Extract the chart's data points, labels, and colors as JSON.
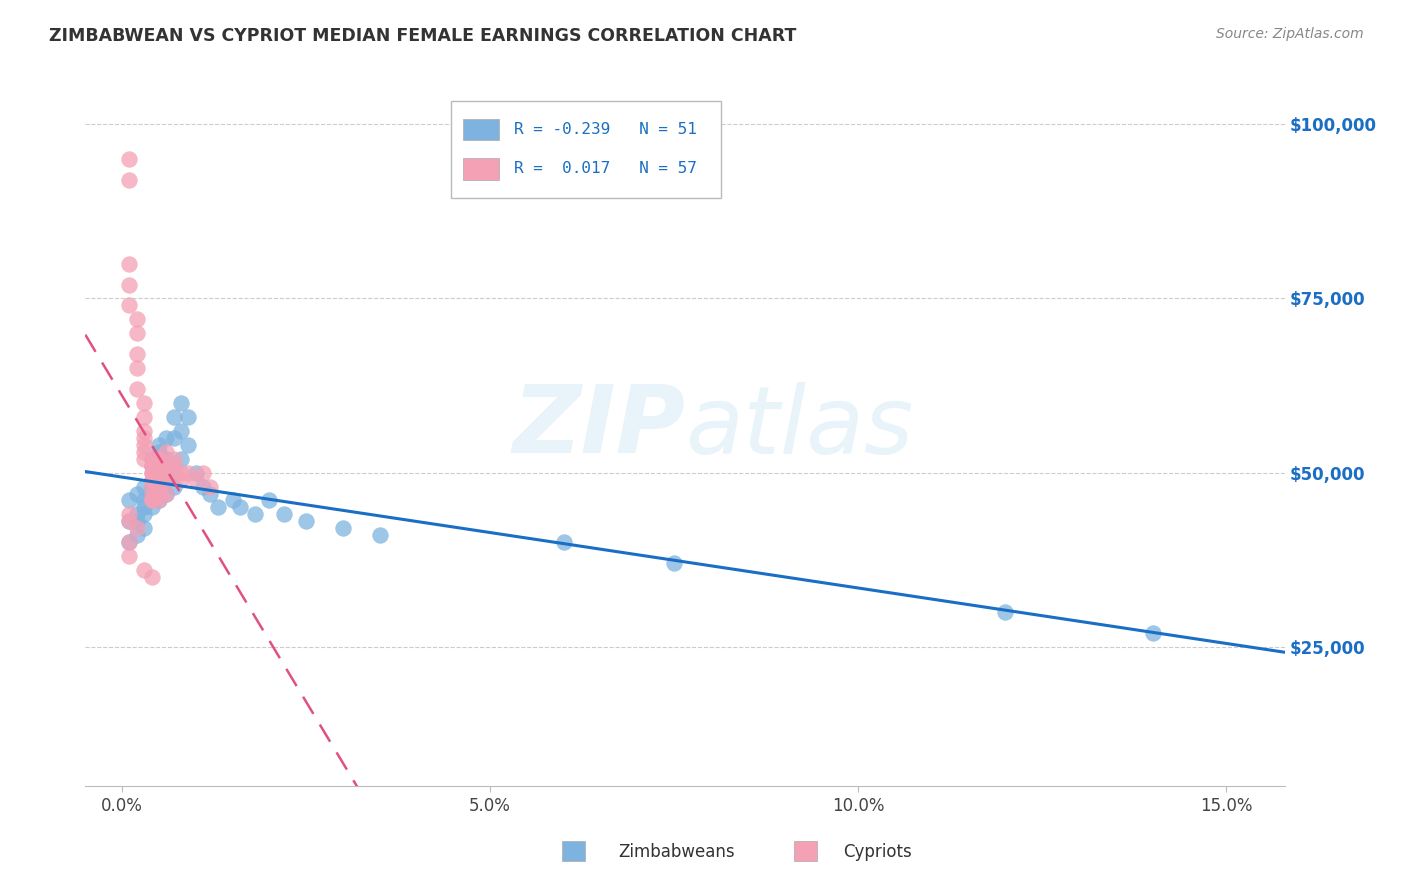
{
  "title": "ZIMBABWEAN VS CYPRIOT MEDIAN FEMALE EARNINGS CORRELATION CHART",
  "source": "Source: ZipAtlas.com",
  "xlabel_ticks": [
    "0.0%",
    "5.0%",
    "10.0%",
    "15.0%"
  ],
  "xlabel_tick_vals": [
    0.0,
    0.05,
    0.1,
    0.15
  ],
  "ylabel_ticks": [
    "$25,000",
    "$50,000",
    "$75,000",
    "$100,000"
  ],
  "ylabel_tick_vals": [
    25000,
    50000,
    75000,
    100000
  ],
  "xlim": [
    -0.005,
    0.158
  ],
  "ylim": [
    5000,
    108000
  ],
  "legend_zimbabweans": "Zimbabweans",
  "legend_cypriots": "Cypriots",
  "R_zimbabweans": -0.239,
  "N_zimbabweans": 51,
  "R_cypriots": 0.017,
  "N_cypriots": 57,
  "color_zimbabweans": "#7EB3E0",
  "color_cypriots": "#F4A0B5",
  "line_color_zimbabweans": "#1a6fc4",
  "line_color_cypriots": "#e05080",
  "watermark": "ZIPatlas",
  "zimbabweans_x": [
    0.001,
    0.001,
    0.001,
    0.002,
    0.002,
    0.002,
    0.002,
    0.003,
    0.003,
    0.003,
    0.003,
    0.003,
    0.004,
    0.004,
    0.004,
    0.004,
    0.004,
    0.005,
    0.005,
    0.005,
    0.005,
    0.005,
    0.006,
    0.006,
    0.006,
    0.006,
    0.007,
    0.007,
    0.007,
    0.007,
    0.008,
    0.008,
    0.008,
    0.009,
    0.009,
    0.01,
    0.011,
    0.012,
    0.013,
    0.015,
    0.016,
    0.018,
    0.02,
    0.022,
    0.025,
    0.03,
    0.035,
    0.06,
    0.075,
    0.12,
    0.14
  ],
  "zimbabweans_y": [
    43000,
    40000,
    46000,
    44000,
    41000,
    47000,
    43000,
    45000,
    42000,
    48000,
    44000,
    46000,
    48000,
    45000,
    51000,
    47000,
    52000,
    50000,
    54000,
    48000,
    53000,
    46000,
    55000,
    52000,
    49000,
    47000,
    58000,
    55000,
    50000,
    48000,
    60000,
    56000,
    52000,
    58000,
    54000,
    50000,
    48000,
    47000,
    45000,
    46000,
    45000,
    44000,
    46000,
    44000,
    43000,
    42000,
    41000,
    40000,
    37000,
    30000,
    27000
  ],
  "cypriots_x": [
    0.001,
    0.001,
    0.001,
    0.001,
    0.001,
    0.002,
    0.002,
    0.002,
    0.002,
    0.002,
    0.003,
    0.003,
    0.003,
    0.003,
    0.003,
    0.003,
    0.003,
    0.004,
    0.004,
    0.004,
    0.004,
    0.004,
    0.004,
    0.004,
    0.004,
    0.004,
    0.004,
    0.004,
    0.005,
    0.005,
    0.005,
    0.005,
    0.005,
    0.005,
    0.005,
    0.005,
    0.006,
    0.006,
    0.006,
    0.006,
    0.006,
    0.007,
    0.007,
    0.007,
    0.008,
    0.008,
    0.009,
    0.01,
    0.011,
    0.012,
    0.001,
    0.001,
    0.002,
    0.001,
    0.001,
    0.003,
    0.004
  ],
  "cypriots_y": [
    95000,
    92000,
    80000,
    77000,
    74000,
    72000,
    70000,
    67000,
    65000,
    62000,
    60000,
    58000,
    56000,
    55000,
    54000,
    53000,
    52000,
    51000,
    50000,
    49000,
    48000,
    47000,
    46000,
    46000,
    52000,
    51000,
    50000,
    49000,
    52000,
    51000,
    50000,
    49000,
    48000,
    47000,
    46000,
    52000,
    51000,
    50000,
    49000,
    53000,
    47000,
    51000,
    50000,
    52000,
    50000,
    49000,
    50000,
    49000,
    50000,
    48000,
    44000,
    43000,
    42000,
    40000,
    38000,
    36000,
    35000
  ]
}
